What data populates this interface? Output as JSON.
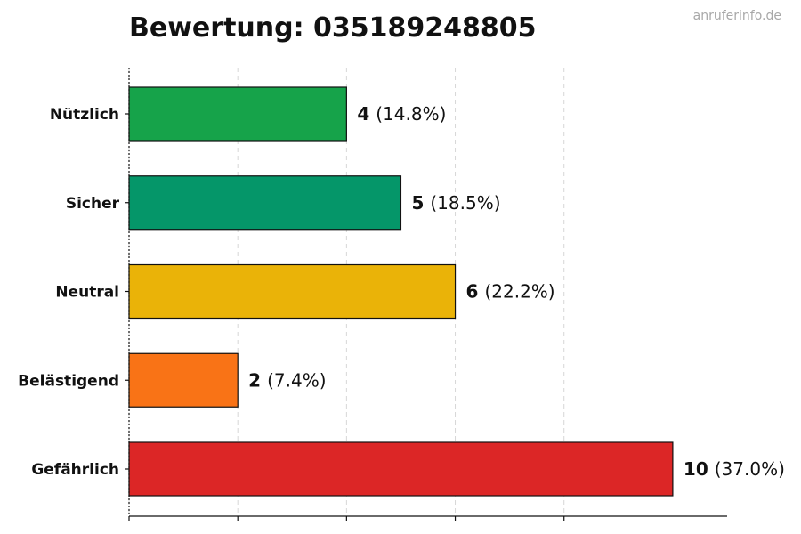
{
  "watermark": "anruferinfo.de",
  "chart_data": {
    "type": "bar",
    "orientation": "horizontal",
    "title": "Bewertung: 035189248805",
    "xlabel": "",
    "ylabel": "",
    "xlim": [
      0,
      11
    ],
    "grid": "x-dashed",
    "categories": [
      "Nützlich",
      "Sicher",
      "Neutral",
      "Belästigend",
      "Gefährlich"
    ],
    "values": [
      4,
      5,
      6,
      2,
      10
    ],
    "labels": [
      "(14.8%)",
      "(18.5%)",
      "(22.2%)",
      "(7.4%)",
      "(37.0%)"
    ],
    "colors": [
      "#16a34a",
      "#059669",
      "#eab308",
      "#f97316",
      "#dc2626"
    ]
  }
}
